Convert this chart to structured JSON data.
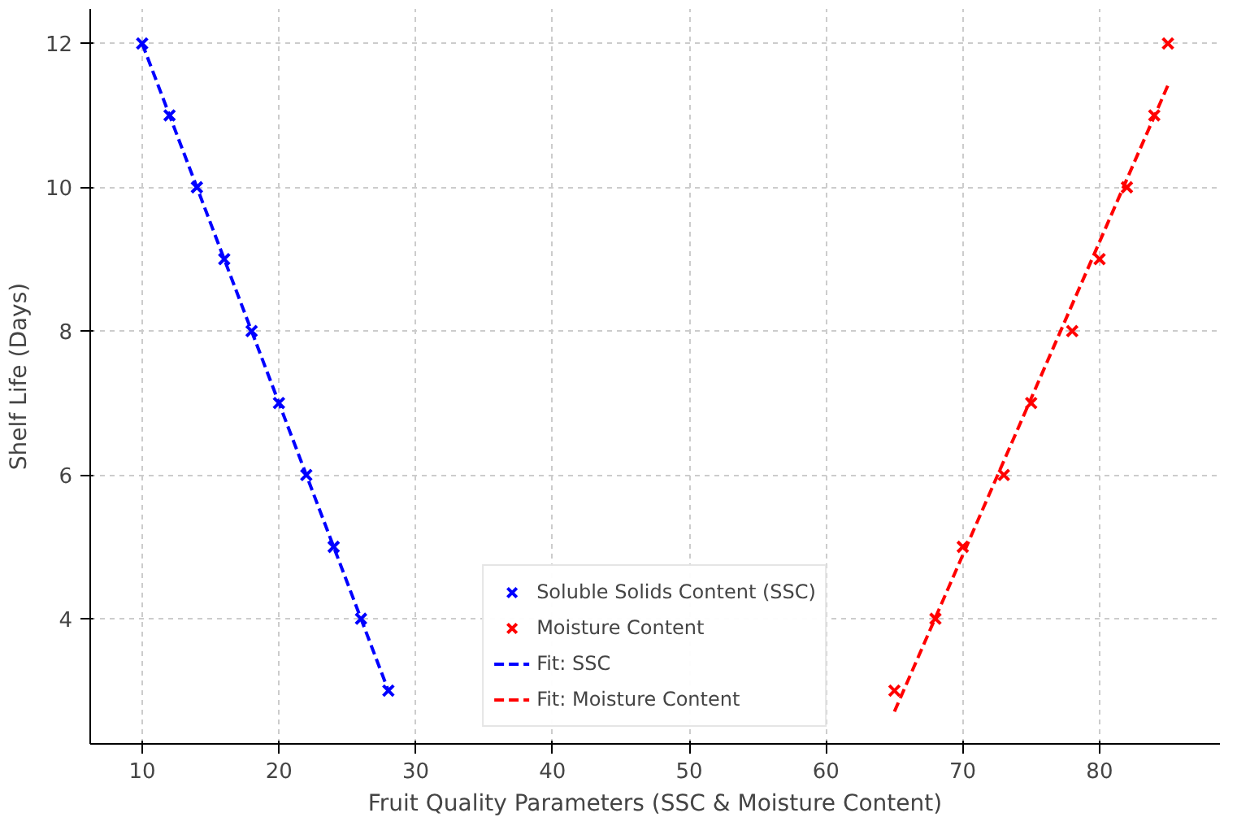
{
  "chart_data": {
    "type": "scatter",
    "xlabel": "Fruit Quality Parameters (SSC & Moisture Content)",
    "ylabel": "Shelf Life (Days)",
    "xlim": [
      6.2,
      88.8
    ],
    "ylim": [
      2.26,
      12.48
    ],
    "xticks": [
      10,
      20,
      30,
      40,
      50,
      60,
      70,
      80
    ],
    "yticks": [
      4,
      6,
      8,
      10,
      12
    ],
    "grid": true,
    "legend": "bottom",
    "marker": "cross",
    "series": [
      {
        "name": "Soluble Solids Content (SSC)",
        "color": "#0000ff",
        "x": [
          10,
          12,
          14,
          16,
          18,
          20,
          22,
          24,
          26,
          28
        ],
        "values": [
          12,
          11,
          10,
          9,
          8,
          7,
          6,
          5,
          4,
          3
        ]
      },
      {
        "name": "Moisture Content",
        "color": "#ff0000",
        "x": [
          65,
          68,
          70,
          73,
          75,
          78,
          80,
          82,
          84,
          85
        ],
        "values": [
          3,
          4,
          5,
          6,
          7,
          8,
          9,
          10,
          11,
          12
        ]
      },
      {
        "name": "Fit: SSC",
        "type": "line",
        "line_style": "dashed",
        "marker": "none",
        "color": "#0000ff",
        "x": [
          10,
          28
        ],
        "values": [
          12,
          3
        ]
      },
      {
        "name": "Fit: Moisture Content",
        "type": "line",
        "line_style": "dashed",
        "marker": "none",
        "color": "#ff0000",
        "x": [
          65,
          85
        ],
        "values": [
          2.71,
          11.42
        ]
      }
    ]
  }
}
